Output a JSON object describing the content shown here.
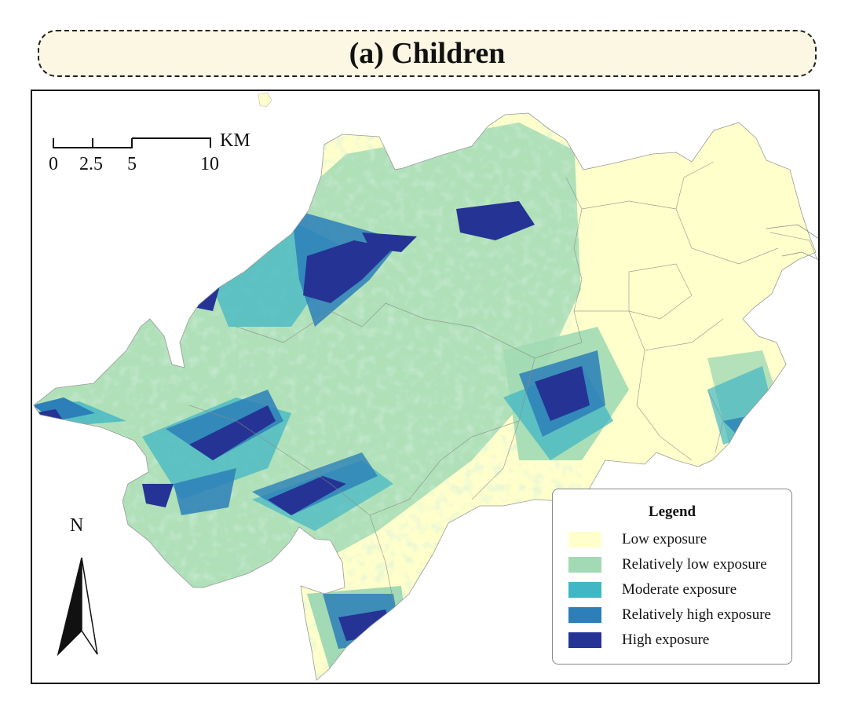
{
  "title": "(a) Children",
  "scale_bar": {
    "ticks": [
      "0",
      "2.5",
      "5",
      "10"
    ],
    "unit": "KM"
  },
  "north_arrow": {
    "label": "N",
    "icon": "north-arrow-icon"
  },
  "legend": {
    "title": "Legend",
    "items": [
      {
        "label": "Low exposure",
        "color": "#ffffcc"
      },
      {
        "label": "Relatively low exposure",
        "color": "#a1dab4"
      },
      {
        "label": "Moderate exposure",
        "color": "#41b6c4"
      },
      {
        "label": "Relatively high exposure",
        "color": "#2c7fb8"
      },
      {
        "label": "High exposure",
        "color": "#253494"
      }
    ]
  }
}
